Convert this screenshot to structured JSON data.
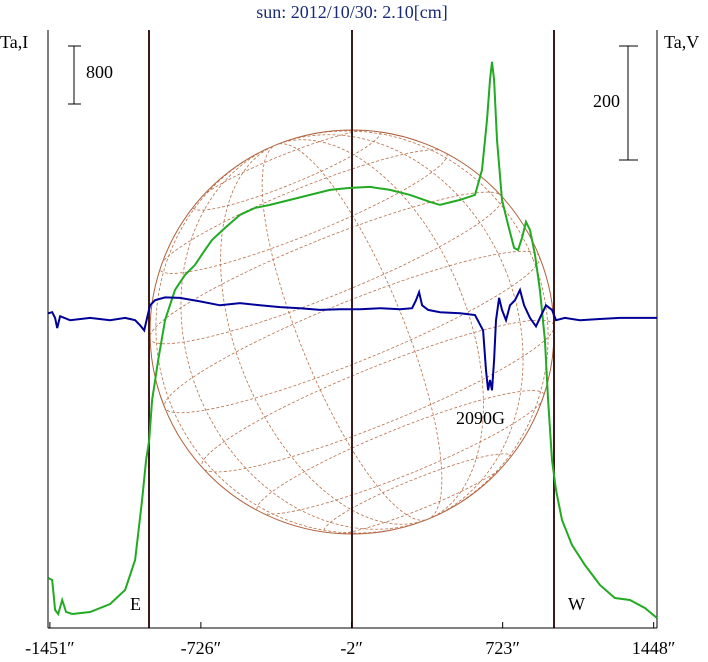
{
  "chart_data": {
    "type": "line",
    "title": "sun: 2012/10/30: 2.10[cm]",
    "y_label": "Ta,I",
    "y2_label": "Ta,V",
    "annotations": [
      "E",
      "W",
      "2090G"
    ],
    "scale_bar_left": 800,
    "scale_bar_right": 200,
    "xlim": [
      -1460,
      1464
    ],
    "ylim": [
      0,
      8250
    ],
    "y2lim": [
      -540,
      509
    ],
    "xticks": [
      {
        "value": -1451,
        "label": "-1451″"
      },
      {
        "value": -726,
        "label": "-726″"
      },
      {
        "value": -2,
        "label": "-2″"
      },
      {
        "value": 723,
        "label": "723″"
      },
      {
        "value": 1448,
        "label": "1448″"
      }
    ],
    "series": [
      {
        "color": "#22aa22",
        "x": [
          -1459,
          -1440,
          -1426,
          -1411,
          -1392,
          -1373,
          -1344,
          -1258,
          -1162,
          -1090,
          -1042,
          -1008,
          -989,
          -974,
          -960,
          -931,
          -898,
          -850,
          -802,
          -754,
          -706,
          -672,
          -610,
          -538,
          -466,
          -394,
          -298,
          -202,
          -106,
          -10,
          86,
          182,
          278,
          374,
          422,
          518,
          590,
          624,
          648,
          662,
          672,
          682,
          696,
          720,
          749,
          778,
          797,
          816,
          835,
          854,
          878,
          902,
          926,
          941,
          960,
          979,
          1008,
          1056,
          1118,
          1190,
          1262,
          1334,
          1406,
          1464
        ],
        "values": [
          690,
          662,
          248,
          193,
          386,
          221,
          193,
          221,
          331,
          524,
          938,
          1766,
          2318,
          2594,
          3146,
          3698,
          4250,
          4664,
          4871,
          5009,
          5216,
          5354,
          5520,
          5699,
          5796,
          5837,
          5906,
          5975,
          6044,
          6072,
          6086,
          6044,
          5975,
          5879,
          5837,
          5906,
          5975,
          6320,
          7010,
          7562,
          7811,
          7562,
          6734,
          5906,
          5561,
          5244,
          5216,
          5382,
          5603,
          5492,
          5147,
          4664,
          3974,
          3146,
          2318,
          1904,
          1490,
          1145,
          869,
          593,
          414,
          386,
          276,
          138
        ]
      },
      {
        "color": "#000099",
        "axis": "y2",
        "x": [
          -1459,
          -1440,
          -1426,
          -1416,
          -1402,
          -1354,
          -1258,
          -1162,
          -1090,
          -1042,
          -1018,
          -998,
          -984,
          -970,
          -946,
          -898,
          -826,
          -730,
          -634,
          -538,
          -442,
          -346,
          -250,
          -154,
          -58,
          38,
          134,
          230,
          288,
          307,
          322,
          336,
          365,
          422,
          518,
          590,
          629,
          643,
          653,
          662,
          672,
          682,
          691,
          706,
          720,
          739,
          758,
          782,
          806,
          826,
          854,
          883,
          902,
          931,
          960,
          979,
          1022,
          1094,
          1190,
          1286,
          1382,
          1464
        ],
        "values": [
          12,
          14,
          4,
          -14,
          7,
          0,
          4,
          0,
          4,
          0,
          -9,
          -18,
          4,
          26,
          35,
          40,
          39,
          33,
          26,
          30,
          26,
          23,
          21,
          18,
          19,
          19,
          21,
          19,
          21,
          35,
          49,
          26,
          18,
          14,
          12,
          9,
          -18,
          -88,
          -123,
          -105,
          -123,
          -70,
          0,
          39,
          18,
          0,
          26,
          35,
          53,
          26,
          4,
          -11,
          4,
          26,
          18,
          0,
          4,
          0,
          2,
          4,
          4,
          4
        ]
      }
    ]
  }
}
